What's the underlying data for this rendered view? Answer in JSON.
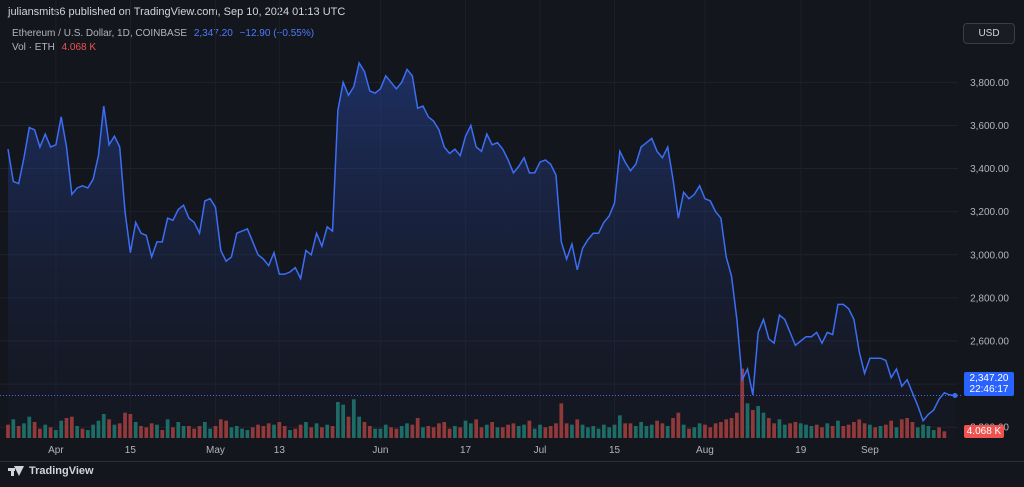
{
  "header": {
    "publisher_line": "juliansmits6 published on TradingView.com, Sep 10, 2024 01:13 UTC"
  },
  "legend": {
    "symbol": "Ethereum / U.S. Dollar, 1D, COINBASE",
    "last_price": "2,347.20",
    "change": "−12.90 (−0.55%)",
    "vol_label": "Vol · ETH",
    "vol_value": "4.068 K"
  },
  "currency_button": "USD",
  "price_tag": {
    "price": "2,347.20",
    "countdown": "22:46:17"
  },
  "volume_tag": "4.068 K",
  "footer": {
    "brand": "TradingView"
  },
  "colors": {
    "background": "#14161d",
    "price_line": "#3b6ef5",
    "up_volume": "#26a69a",
    "down_volume": "#ef5350",
    "accent": "#2962ff"
  },
  "chart_data": {
    "type": "area",
    "title": "Ethereum / U.S. Dollar, 1D, COINBASE",
    "ylim": [
      2150,
      3950
    ],
    "y_ticks": [
      2200,
      2400,
      2600,
      2800,
      3000,
      3200,
      3400,
      3600,
      3800
    ],
    "y_tick_labels": [
      "2,200.00",
      "2,400.00",
      "2,600.00",
      "2,800.00",
      "3,000.00",
      "3,200.00",
      "3,400.00",
      "3,600.00",
      "3,800.00"
    ],
    "x_ticks": [
      {
        "label": "Apr",
        "index": 9
      },
      {
        "label": "15",
        "index": 23
      },
      {
        "label": "May",
        "index": 39
      },
      {
        "label": "13",
        "index": 51
      },
      {
        "label": "Jun",
        "index": 70
      },
      {
        "label": "17",
        "index": 86
      },
      {
        "label": "Jul",
        "index": 100
      },
      {
        "label": "15",
        "index": 114
      },
      {
        "label": "Aug",
        "index": 131
      },
      {
        "label": "19",
        "index": 149
      },
      {
        "label": "Sep",
        "index": 162
      }
    ],
    "series": [
      {
        "values": [
          3490,
          3340,
          3330,
          3450,
          3590,
          3580,
          3500,
          3560,
          3500,
          3510,
          3640,
          3500,
          3280,
          3310,
          3320,
          3310,
          3350,
          3460,
          3690,
          3510,
          3550,
          3500,
          3200,
          3010,
          3150,
          3100,
          3090,
          2990,
          3060,
          3060,
          3170,
          3160,
          3210,
          3230,
          3170,
          3150,
          3100,
          3250,
          3260,
          3220,
          3020,
          2970,
          2990,
          3100,
          3110,
          3120,
          3060,
          3000,
          2980,
          2950,
          3010,
          2910,
          2910,
          2920,
          2940,
          2890,
          3020,
          3000,
          3100,
          3040,
          3130,
          3110,
          3670,
          3800,
          3740,
          3780,
          3890,
          3850,
          3760,
          3750,
          3770,
          3830,
          3800,
          3770,
          3800,
          3860,
          3830,
          3680,
          3690,
          3640,
          3620,
          3580,
          3500,
          3470,
          3490,
          3460,
          3550,
          3600,
          3500,
          3480,
          3560,
          3510,
          3520,
          3490,
          3440,
          3380,
          3410,
          3450,
          3380,
          3380,
          3430,
          3440,
          3420,
          3370,
          3060,
          2980,
          3050,
          2930,
          3030,
          3070,
          3100,
          3100,
          3150,
          3180,
          3240,
          3480,
          3430,
          3390,
          3420,
          3500,
          3520,
          3540,
          3480,
          3450,
          3500,
          3350,
          3170,
          3290,
          3260,
          3280,
          3320,
          3260,
          3250,
          3200,
          3170,
          2990,
          2900,
          2700,
          2420,
          2470,
          2350,
          2640,
          2700,
          2610,
          2590,
          2720,
          2700,
          2640,
          2580,
          2600,
          2620,
          2620,
          2640,
          2590,
          2640,
          2630,
          2770,
          2770,
          2750,
          2700,
          2550,
          2450,
          2520,
          2520,
          2520,
          2510,
          2430,
          2470,
          2390,
          2420,
          2360,
          2300,
          2230,
          2260,
          2280,
          2330,
          2360,
          2350,
          2347
        ]
      }
    ],
    "volume_max": 3,
    "volume": [
      [
        1.0,
        "d"
      ],
      [
        1.4,
        "u"
      ],
      [
        0.9,
        "d"
      ],
      [
        1.1,
        "u"
      ],
      [
        1.6,
        "u"
      ],
      [
        1.2,
        "d"
      ],
      [
        0.7,
        "d"
      ],
      [
        1.0,
        "u"
      ],
      [
        0.8,
        "d"
      ],
      [
        0.6,
        "u"
      ],
      [
        1.3,
        "u"
      ],
      [
        1.5,
        "d"
      ],
      [
        1.6,
        "d"
      ],
      [
        0.9,
        "u"
      ],
      [
        0.7,
        "d"
      ],
      [
        0.6,
        "u"
      ],
      [
        1.0,
        "u"
      ],
      [
        1.3,
        "u"
      ],
      [
        1.8,
        "u"
      ],
      [
        1.4,
        "d"
      ],
      [
        1.0,
        "u"
      ],
      [
        1.1,
        "d"
      ],
      [
        1.9,
        "d"
      ],
      [
        1.8,
        "d"
      ],
      [
        1.2,
        "u"
      ],
      [
        0.9,
        "d"
      ],
      [
        0.8,
        "d"
      ],
      [
        1.1,
        "d"
      ],
      [
        1.0,
        "u"
      ],
      [
        0.6,
        "d"
      ],
      [
        1.4,
        "u"
      ],
      [
        0.8,
        "d"
      ],
      [
        1.2,
        "u"
      ],
      [
        0.9,
        "u"
      ],
      [
        0.9,
        "d"
      ],
      [
        0.7,
        "d"
      ],
      [
        0.9,
        "d"
      ],
      [
        1.2,
        "u"
      ],
      [
        0.7,
        "u"
      ],
      [
        0.9,
        "d"
      ],
      [
        1.4,
        "d"
      ],
      [
        1.3,
        "d"
      ],
      [
        0.8,
        "u"
      ],
      [
        0.9,
        "u"
      ],
      [
        0.7,
        "u"
      ],
      [
        0.6,
        "u"
      ],
      [
        0.8,
        "d"
      ],
      [
        1.0,
        "d"
      ],
      [
        0.9,
        "d"
      ],
      [
        1.1,
        "d"
      ],
      [
        1.0,
        "u"
      ],
      [
        1.2,
        "d"
      ],
      [
        0.9,
        "d"
      ],
      [
        0.6,
        "u"
      ],
      [
        0.7,
        "d"
      ],
      [
        1.0,
        "d"
      ],
      [
        1.2,
        "u"
      ],
      [
        0.8,
        "d"
      ],
      [
        1.1,
        "u"
      ],
      [
        0.8,
        "d"
      ],
      [
        1.0,
        "u"
      ],
      [
        0.9,
        "d"
      ],
      [
        2.7,
        "u"
      ],
      [
        2.5,
        "u"
      ],
      [
        1.6,
        "d"
      ],
      [
        2.9,
        "u"
      ],
      [
        1.6,
        "u"
      ],
      [
        1.2,
        "d"
      ],
      [
        0.9,
        "d"
      ],
      [
        0.7,
        "u"
      ],
      [
        0.7,
        "u"
      ],
      [
        1.0,
        "u"
      ],
      [
        0.8,
        "d"
      ],
      [
        0.7,
        "d"
      ],
      [
        0.9,
        "u"
      ],
      [
        1.1,
        "u"
      ],
      [
        1.0,
        "d"
      ],
      [
        1.5,
        "d"
      ],
      [
        0.8,
        "u"
      ],
      [
        0.9,
        "d"
      ],
      [
        0.8,
        "d"
      ],
      [
        1.1,
        "d"
      ],
      [
        1.2,
        "d"
      ],
      [
        0.7,
        "d"
      ],
      [
        0.9,
        "u"
      ],
      [
        0.8,
        "d"
      ],
      [
        1.3,
        "u"
      ],
      [
        1.1,
        "u"
      ],
      [
        1.4,
        "d"
      ],
      [
        0.8,
        "d"
      ],
      [
        1.0,
        "u"
      ],
      [
        1.2,
        "d"
      ],
      [
        0.8,
        "u"
      ],
      [
        0.8,
        "d"
      ],
      [
        1.0,
        "d"
      ],
      [
        1.1,
        "d"
      ],
      [
        0.9,
        "u"
      ],
      [
        1.0,
        "u"
      ],
      [
        1.3,
        "d"
      ],
      [
        0.7,
        "u"
      ],
      [
        1.0,
        "u"
      ],
      [
        0.8,
        "d"
      ],
      [
        0.9,
        "d"
      ],
      [
        1.1,
        "d"
      ],
      [
        2.6,
        "d"
      ],
      [
        1.1,
        "d"
      ],
      [
        1.0,
        "u"
      ],
      [
        1.4,
        "d"
      ],
      [
        1.0,
        "u"
      ],
      [
        0.8,
        "u"
      ],
      [
        0.9,
        "u"
      ],
      [
        0.7,
        "u"
      ],
      [
        1.0,
        "u"
      ],
      [
        0.8,
        "u"
      ],
      [
        1.0,
        "u"
      ],
      [
        1.7,
        "u"
      ],
      [
        1.1,
        "d"
      ],
      [
        1.1,
        "d"
      ],
      [
        0.9,
        "u"
      ],
      [
        1.2,
        "u"
      ],
      [
        0.9,
        "u"
      ],
      [
        1.0,
        "u"
      ],
      [
        1.3,
        "d"
      ],
      [
        1.1,
        "d"
      ],
      [
        0.9,
        "u"
      ],
      [
        1.5,
        "d"
      ],
      [
        1.9,
        "d"
      ],
      [
        1.0,
        "u"
      ],
      [
        0.7,
        "d"
      ],
      [
        0.8,
        "u"
      ],
      [
        1.1,
        "u"
      ],
      [
        1.0,
        "d"
      ],
      [
        0.8,
        "d"
      ],
      [
        1.1,
        "d"
      ],
      [
        1.2,
        "d"
      ],
      [
        1.4,
        "d"
      ],
      [
        1.5,
        "d"
      ],
      [
        1.9,
        "d"
      ],
      [
        5.2,
        "d"
      ],
      [
        2.6,
        "u"
      ],
      [
        2.1,
        "d"
      ],
      [
        2.4,
        "u"
      ],
      [
        1.9,
        "u"
      ],
      [
        1.5,
        "d"
      ],
      [
        1.1,
        "d"
      ],
      [
        1.4,
        "u"
      ],
      [
        1.0,
        "u"
      ],
      [
        1.1,
        "d"
      ],
      [
        1.2,
        "d"
      ],
      [
        1.1,
        "u"
      ],
      [
        1.0,
        "u"
      ],
      [
        0.9,
        "u"
      ],
      [
        1.0,
        "d"
      ],
      [
        0.8,
        "d"
      ],
      [
        1.1,
        "u"
      ],
      [
        0.9,
        "d"
      ],
      [
        1.3,
        "u"
      ],
      [
        0.9,
        "d"
      ],
      [
        1.0,
        "d"
      ],
      [
        1.2,
        "d"
      ],
      [
        1.4,
        "d"
      ],
      [
        1.1,
        "d"
      ],
      [
        1.0,
        "u"
      ],
      [
        0.8,
        "d"
      ],
      [
        0.9,
        "u"
      ],
      [
        1.0,
        "d"
      ],
      [
        1.3,
        "d"
      ],
      [
        0.8,
        "u"
      ],
      [
        1.4,
        "d"
      ],
      [
        1.5,
        "d"
      ],
      [
        1.2,
        "d"
      ],
      [
        0.8,
        "u"
      ],
      [
        1.0,
        "u"
      ],
      [
        0.9,
        "u"
      ],
      [
        0.6,
        "u"
      ],
      [
        0.8,
        "d"
      ],
      [
        0.5,
        "d"
      ]
    ]
  }
}
